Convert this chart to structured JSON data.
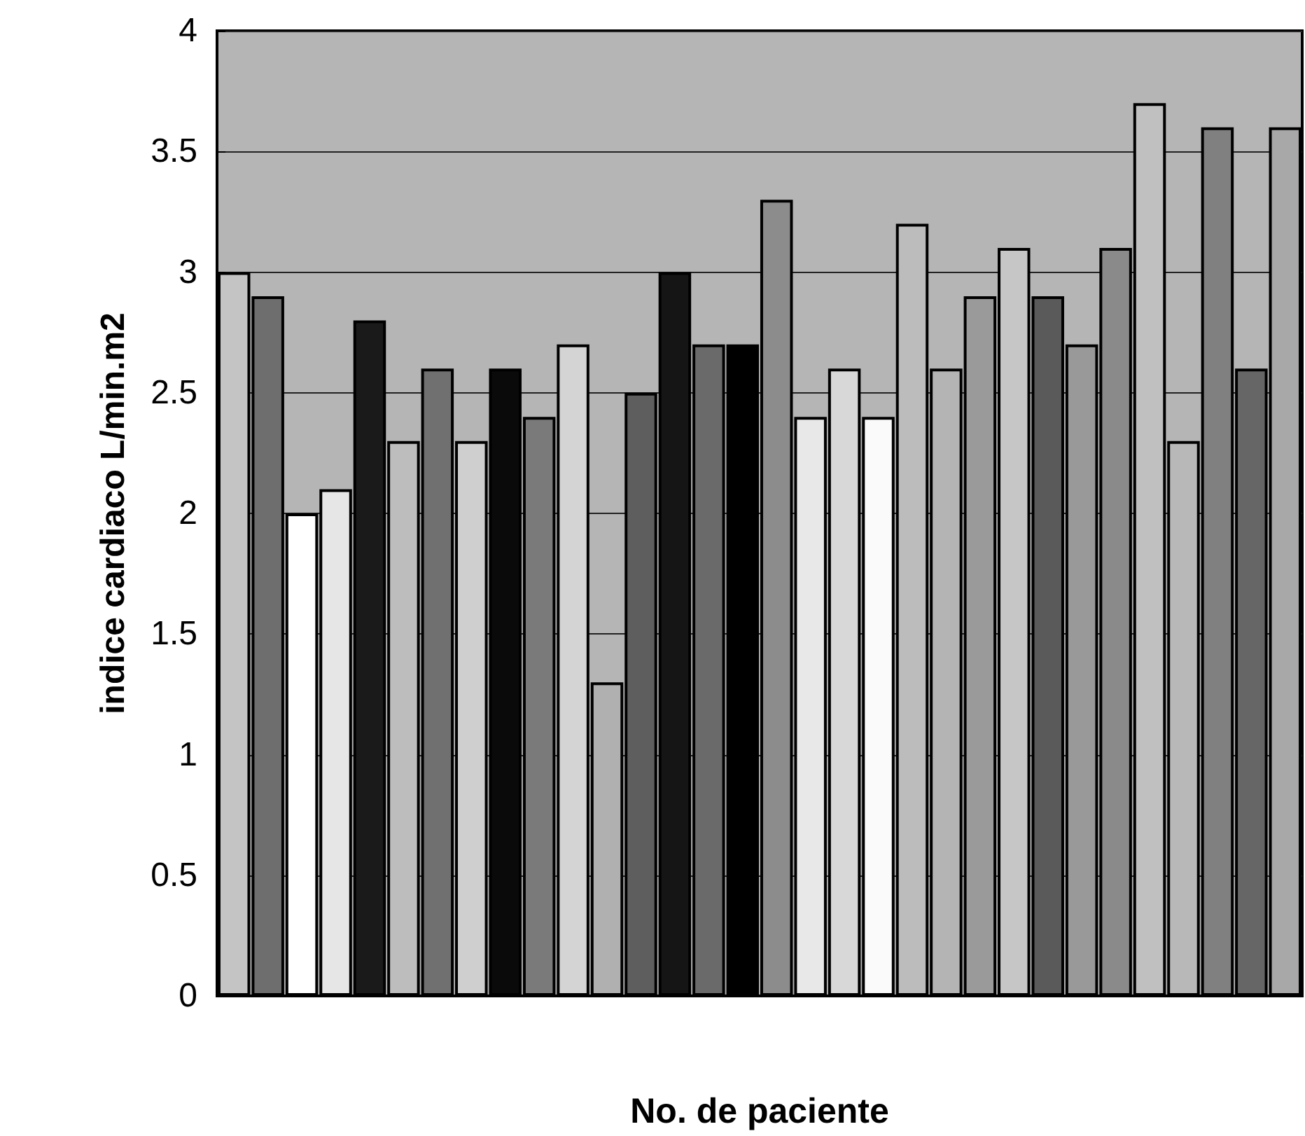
{
  "chart_data": {
    "type": "bar",
    "xlabel": "No. de paciente",
    "ylabel": "indice cardiaco L/min.m2",
    "categories": [
      null,
      null,
      null,
      null,
      null,
      null,
      null,
      null,
      null,
      null,
      null,
      null,
      null,
      null,
      null,
      null,
      null,
      null,
      null,
      null,
      null,
      null,
      null,
      null,
      null,
      null,
      null,
      null,
      null,
      null,
      null,
      null
    ],
    "values": [
      3.0,
      2.9,
      2.0,
      2.1,
      2.8,
      2.3,
      2.6,
      2.3,
      2.6,
      2.4,
      2.7,
      1.3,
      2.5,
      3.0,
      2.7,
      2.7,
      3.3,
      2.4,
      2.6,
      2.4,
      3.2,
      2.6,
      2.9,
      3.1,
      2.9,
      2.7,
      3.1,
      3.7,
      2.3,
      3.6,
      2.6,
      3.6
    ],
    "colors": [
      "#c4c4c4",
      "#6e6e6e",
      "#ffffff",
      "#e6e6e6",
      "#1a1a1a",
      "#bdbdbd",
      "#707070",
      "#cfcfcf",
      "#0a0a0a",
      "#7a7a7a",
      "#d4d4d4",
      "#b0b0b0",
      "#5e5e5e",
      "#151515",
      "#6a6a6a",
      "#000000",
      "#8c8c8c",
      "#e8e8e8",
      "#d8d8d8",
      "#fafafa",
      "#bcbcbc",
      "#b4b4b4",
      "#9a9a9a",
      "#c6c6c6",
      "#5a5a5a",
      "#999999",
      "#8a8a8a",
      "#c0c0c0",
      "#b8b8b8",
      "#808080",
      "#666666",
      "#a8a8a8"
    ],
    "ylim": [
      0,
      4
    ],
    "yticks": [
      0,
      0.5,
      1,
      1.5,
      2,
      2.5,
      3,
      3.5,
      4
    ],
    "grid": "y"
  }
}
